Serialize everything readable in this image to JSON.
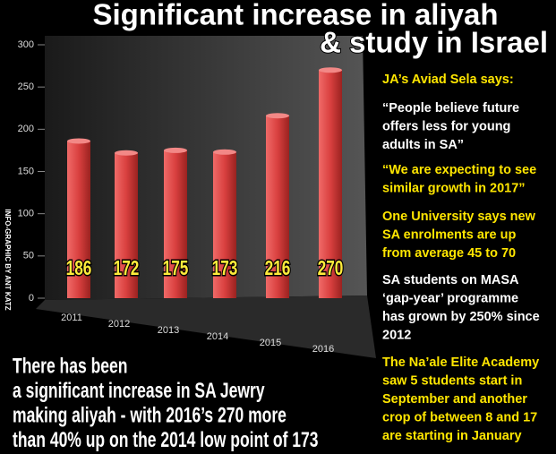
{
  "chart_data": {
    "type": "bar",
    "title": [
      "Significant increase in aliyah",
      "& study in Israel"
    ],
    "categories": [
      "2011",
      "2012",
      "2013",
      "2014",
      "2015",
      "2016"
    ],
    "values": [
      186,
      172,
      175,
      173,
      216,
      270
    ],
    "color": "#d9403f",
    "ylim": [
      0,
      300
    ],
    "yticks": [
      0,
      50,
      100,
      150,
      200,
      250,
      300
    ],
    "credit": "INFO-GRAPHIC BY ANT KATZ",
    "notes": [
      {
        "color": "#ffe600",
        "lines": [
          "JA’s Aviad Sela says:"
        ]
      },
      {
        "color": "#ffffff",
        "lines": [
          "“People believe future",
          "offers less for young",
          "adults in SA”"
        ]
      },
      {
        "color": "#ffe600",
        "lines": [
          "“We are expecting to see",
          "similar growth in 2017”"
        ]
      },
      {
        "color": "#ffe600",
        "lines": [
          "One University says new",
          "SA enrolments are up",
          "from average 45 to 70"
        ]
      },
      {
        "color": "#ffffff",
        "lines": [
          "SA students on MASA",
          "‘gap-year’ programme",
          "has grown by 250% since",
          "2012"
        ]
      },
      {
        "color": "#ffe600",
        "lines": [
          "The Na’ale Elite Academy",
          "saw 5 students start in",
          "September and another",
          "crop of between 8 and 17",
          "are starting in January"
        ]
      }
    ],
    "caption": [
      "There has been",
      "a significant increase in SA Jewry",
      "making aliyah - with 2016’s 270 more",
      "than 40% up on the 2014 low point of 173"
    ]
  }
}
